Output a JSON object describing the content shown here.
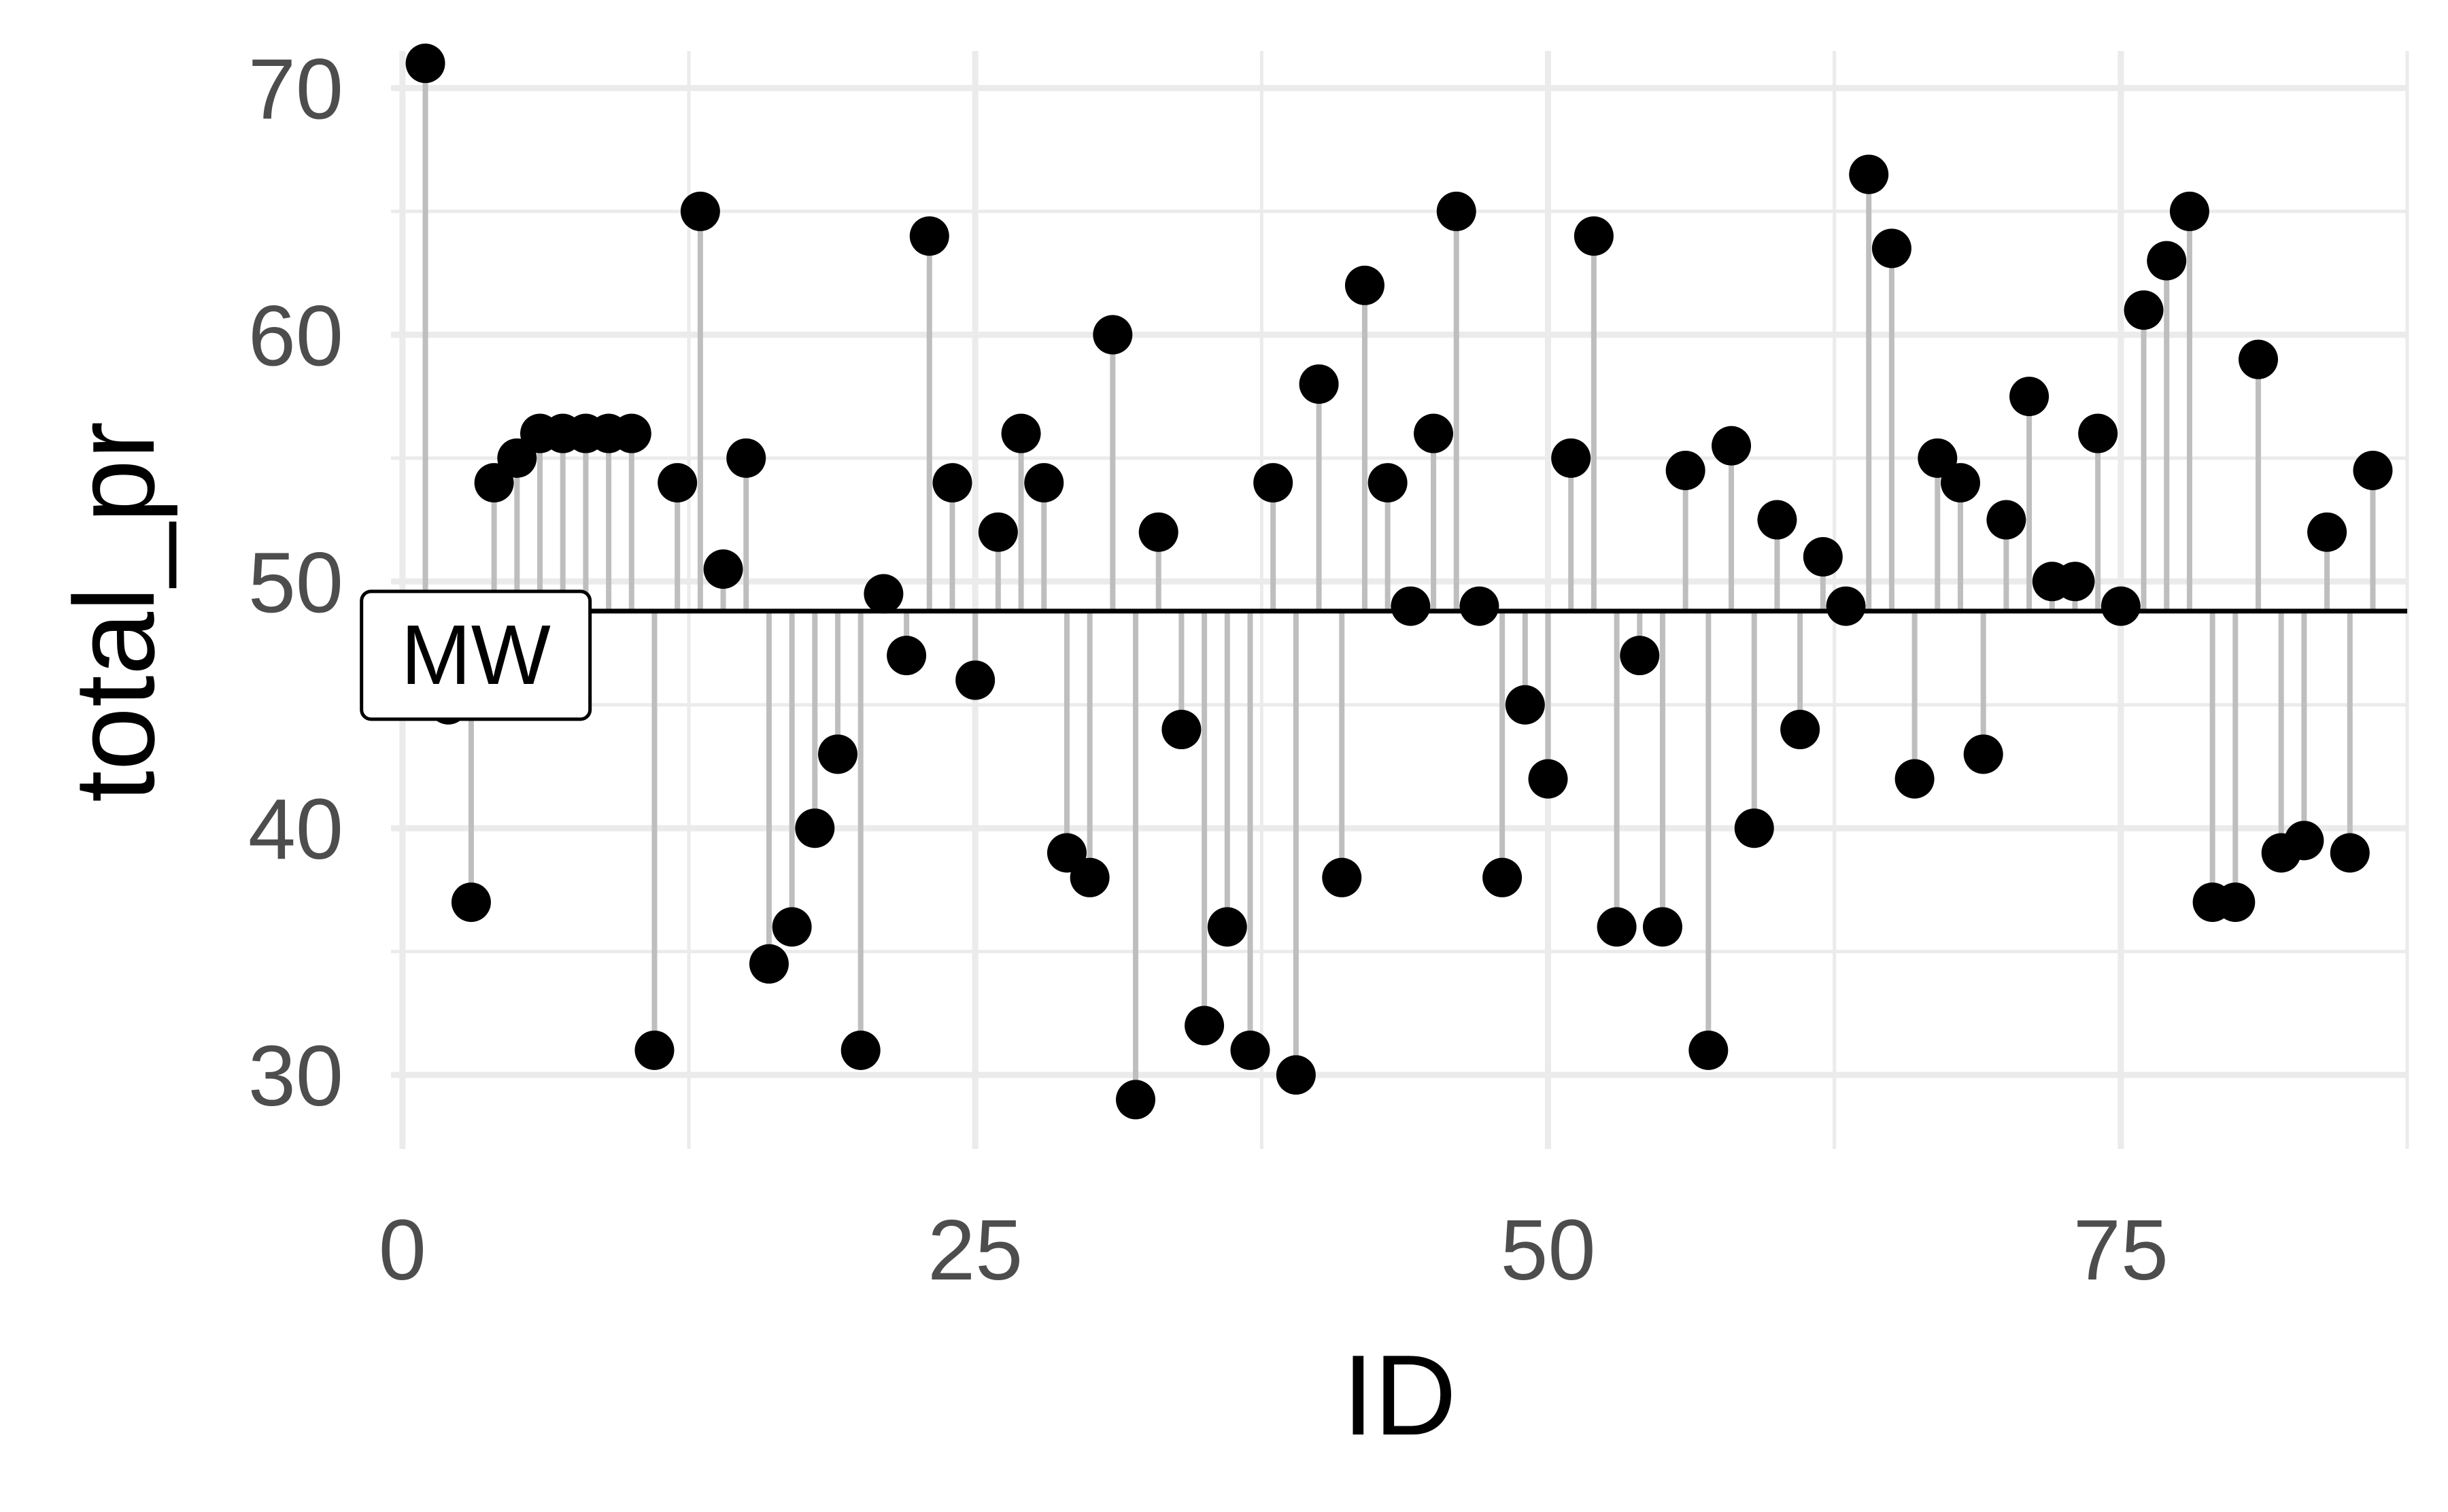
{
  "chart_data": {
    "type": "scatter",
    "geom": "lollipop",
    "xlabel": "ID",
    "ylabel": "total_pr",
    "xlim": [
      -0.5,
      87.5
    ],
    "ylim": [
      27,
      71.5
    ],
    "x_ticks": [
      0,
      25,
      50,
      75
    ],
    "y_ticks": [
      30,
      40,
      50,
      60,
      70
    ],
    "grid": true,
    "reference_line": {
      "y": 48.8,
      "label": "MW"
    },
    "colors": {
      "point": "#000000",
      "stem": "#bebebe",
      "grid": "#ebebeb",
      "reference_line": "#000000"
    },
    "x": [
      1,
      2,
      3,
      4,
      5,
      6,
      7,
      8,
      9,
      10,
      11,
      12,
      13,
      14,
      15,
      16,
      17,
      18,
      19,
      20,
      21,
      22,
      23,
      24,
      25,
      26,
      27,
      28,
      29,
      30,
      31,
      32,
      33,
      34,
      35,
      36,
      37,
      38,
      39,
      40,
      41,
      42,
      43,
      44,
      45,
      46,
      47,
      48,
      49,
      50,
      51,
      52,
      53,
      54,
      55,
      56,
      57,
      58,
      59,
      60,
      61,
      62,
      63,
      64,
      65,
      66,
      67,
      68,
      69,
      70,
      71,
      72,
      73,
      74,
      75,
      76,
      77,
      78,
      79,
      80,
      81,
      82,
      83,
      84,
      85,
      86
    ],
    "y": [
      71,
      45,
      37,
      54,
      55,
      56,
      56,
      56,
      56,
      56,
      31,
      54,
      65,
      50.5,
      55,
      34.5,
      36,
      40,
      43,
      31,
      49.5,
      47,
      64,
      54,
      46,
      52,
      56,
      54,
      39,
      38,
      60,
      29,
      52,
      44,
      32,
      36,
      31,
      54,
      30,
      58,
      38,
      62,
      54,
      49,
      56,
      65,
      49,
      38,
      45,
      42,
      55,
      64,
      36,
      47,
      36,
      54.5,
      31,
      55.5,
      40,
      52.5,
      44,
      51,
      49,
      66.5,
      63.5,
      42,
      55,
      54,
      43,
      52.5,
      57.5,
      50,
      50,
      56,
      49,
      61,
      63,
      65,
      37,
      37,
      59,
      39,
      39.5,
      52,
      39,
      54.5
    ]
  }
}
